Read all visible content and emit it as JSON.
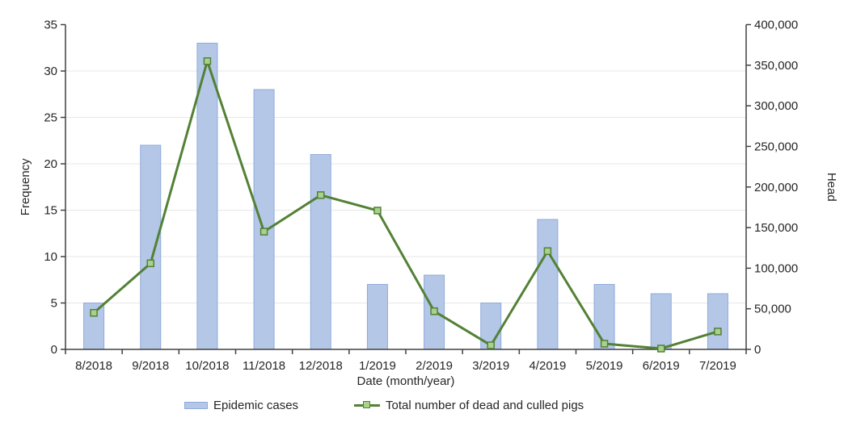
{
  "chart_data": {
    "type": "bar",
    "subtype": "combo-bar-line-dual-axis",
    "title": "",
    "categories": [
      "8/2018",
      "9/2018",
      "10/2018",
      "11/2018",
      "12/2018",
      "1/2019",
      "2/2019",
      "3/2019",
      "4/2019",
      "5/2019",
      "6/2019",
      "7/2019"
    ],
    "series": [
      {
        "name": "Epidemic cases",
        "type": "bar",
        "axis": "left",
        "values": [
          5,
          22,
          33,
          28,
          21,
          7,
          8,
          5,
          14,
          7,
          6,
          6
        ]
      },
      {
        "name": "Total number of dead and culled pigs",
        "type": "line",
        "axis": "right",
        "marker": "square",
        "values": [
          45000,
          106000,
          355000,
          145000,
          190000,
          171000,
          47000,
          5000,
          121000,
          7000,
          1000,
          22000
        ]
      }
    ],
    "xlabel": "Date (month/year)",
    "left_axis": {
      "label": "Frequency",
      "min": 0,
      "max": 35,
      "tick_step": 5,
      "ticks": [
        0,
        5,
        10,
        15,
        20,
        25,
        30,
        35
      ],
      "tick_labels": [
        "0",
        "5",
        "10",
        "15",
        "20",
        "25",
        "30",
        "35"
      ]
    },
    "right_axis": {
      "label": "Head",
      "min": 0,
      "max": 400000,
      "tick_step": 50000,
      "ticks": [
        0,
        50000,
        100000,
        150000,
        200000,
        250000,
        300000,
        350000,
        400000
      ],
      "tick_labels": [
        "0",
        "50,000",
        "100,000",
        "150,000",
        "200,000",
        "250,000",
        "300,000",
        "350,000",
        "400,000"
      ]
    },
    "grid": "horizontal",
    "legend_position": "bottom"
  },
  "colors": {
    "bar_fill": "#b4c7e7",
    "bar_border": "#8faadc",
    "line": "#538135",
    "marker_fill": "#a9d18e",
    "gridline": "#e7e7e7",
    "axis": "#404040",
    "text": "#262626",
    "background": "#ffffff"
  }
}
